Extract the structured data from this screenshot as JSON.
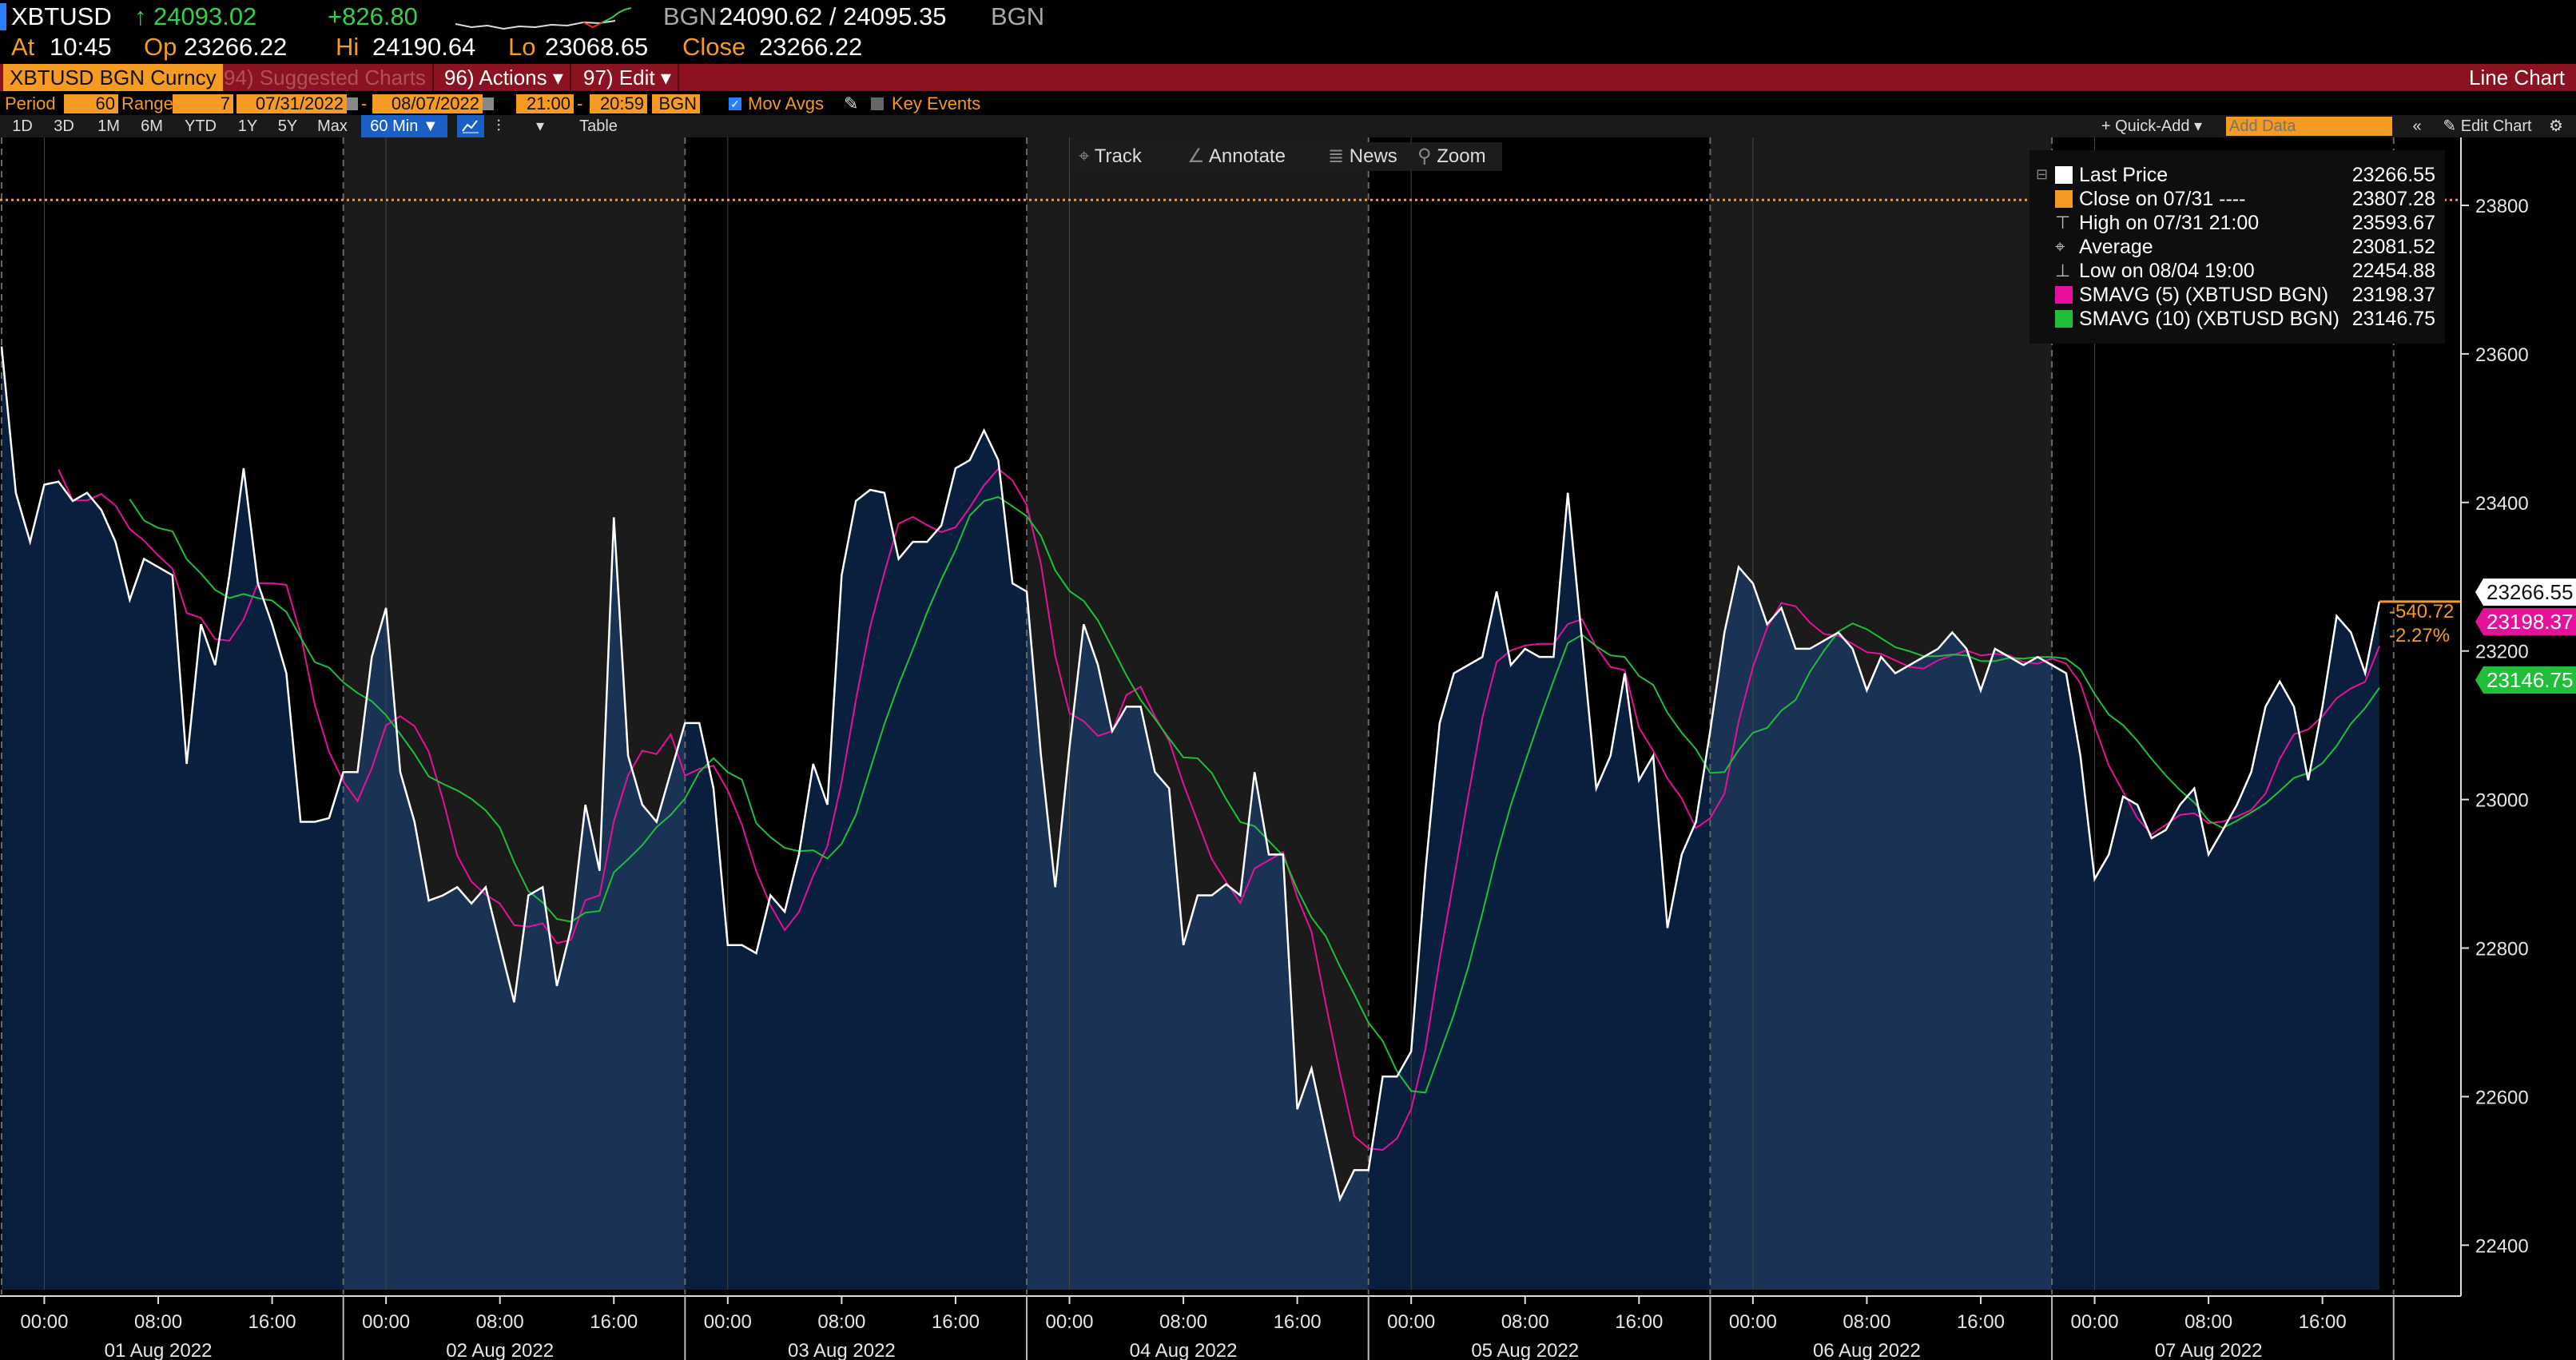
{
  "header": {
    "ticker": "XBTUSD",
    "last_arrow": "↑",
    "last": "24093.02",
    "change": "+826.80",
    "source_label": "BGN",
    "bid_ask": "24090.62 / 24095.35",
    "source_label_2": "BGN",
    "at_label": "At",
    "at": "10:45",
    "open_label": "Op",
    "open": "23266.22",
    "high_label": "Hi",
    "high": "24190.64",
    "low_label": "Lo",
    "low": "23068.65",
    "close_label": "Close",
    "close": "23266.22"
  },
  "menubar": {
    "security": "XBTUSD BGN Curncy",
    "suggested": "94) Suggested Charts",
    "actions": "96) Actions ▾",
    "edit": "97) Edit ▾",
    "chart_type": "Line Chart"
  },
  "options": {
    "period_label": "Period",
    "period": "60",
    "range_label": "Range",
    "range": "7",
    "start_date": "07/31/2022",
    "end_date": "08/07/2022",
    "start_time": "21:00",
    "end_time": "20:59",
    "source": "BGN",
    "mov_avgs_label": "Mov Avgs",
    "mov_avgs_checked": true,
    "key_events_label": "Key Events",
    "key_events_checked": false,
    "dash": "-"
  },
  "toolbar": {
    "ranges": [
      "1D",
      "3D",
      "1M",
      "6M",
      "YTD",
      "1Y",
      "5Y",
      "Max"
    ],
    "interval": "60 Min ▼",
    "table": "Table",
    "quick_add": "+ Quick-Add ▾",
    "add_data_placeholder": "Add Data",
    "collapse": "«",
    "edit_chart": "✎ Edit Chart",
    "gear": "⚙"
  },
  "chart_controls": {
    "track": "Track",
    "annotate": "Annotate",
    "news": "News",
    "zoom": "Zoom"
  },
  "legend": [
    {
      "name": "Last Price",
      "value": "23266.55",
      "color": "#ffffff"
    },
    {
      "name": "Close on 07/31 ----",
      "value": "23807.28",
      "color": "#f59a23"
    },
    {
      "name": "High on 07/31 21:00",
      "value": "23593.67",
      "icon": "high-marker"
    },
    {
      "name": "Average",
      "value": "23081.52",
      "icon": "average-marker"
    },
    {
      "name": "Low on 08/04 19:00",
      "value": "22454.88",
      "icon": "low-marker"
    },
    {
      "name": "SMAVG (5) (XBTUSD BGN)",
      "value": "23198.37",
      "color": "#e6119a"
    },
    {
      "name": "SMAVG (10) (XBTUSD BGN)",
      "value": "23146.75",
      "color": "#1fbf3a"
    }
  ],
  "annotation": {
    "change": "-540.72",
    "change_pct": "-2.27%"
  },
  "colors": {
    "price": "#ffffff",
    "area": "#0a1f3d",
    "area_alt": "#1a3253",
    "sma5": "#e6119a",
    "sma10": "#1fbf3a",
    "close_line": "#f59a23",
    "shade": "#1b1b1b"
  },
  "chart_data": {
    "type": "line",
    "x_start": "07/31/2022 21:00",
    "interval_minutes": 60,
    "ylim": [
      22330,
      23900
    ],
    "y_ticks": [
      23800,
      23600,
      23400,
      23200,
      23000,
      22800,
      22600,
      22400
    ],
    "reference_line": 23807.28,
    "right_axis_tags": [
      {
        "value": "23266.55",
        "color": "#ffffff",
        "text_color": "#111111"
      },
      {
        "value": "23198.37",
        "color": "#e6119a",
        "text_color": "#ffffff"
      },
      {
        "value": "23146.75",
        "color": "#1fbf3a",
        "text_color": "#ffffff"
      }
    ],
    "days": [
      "01 Aug 2022",
      "02 Aug 2022",
      "03 Aug 2022",
      "04 Aug 2022",
      "05 Aug 2022",
      "06 Aug 2022",
      "07 Aug 2022"
    ],
    "hour_ticks": [
      "00:00",
      "08:00",
      "16:00"
    ],
    "series": [
      {
        "name": "Last Price",
        "values": [
          23610,
          23413,
          23347,
          23424,
          23428,
          23402,
          23413,
          23390,
          23347,
          23269,
          23324,
          23313,
          23302,
          23048,
          23236,
          23181,
          23302,
          23446,
          23291,
          23236,
          23170,
          22970,
          22970,
          22975,
          23037,
          23037,
          23192,
          23258,
          23037,
          22970,
          22864,
          22871,
          22882,
          22860,
          22882,
          22804,
          22727,
          22871,
          22882,
          22749,
          22827,
          22993,
          22904,
          23380,
          23059,
          22993,
          22970,
          23037,
          23103,
          23103,
          23015,
          22804,
          22804,
          22793,
          22871,
          22849,
          22926,
          23048,
          22993,
          23302,
          23402,
          23417,
          23413,
          23324,
          23347,
          23347,
          23369,
          23446,
          23457,
          23497,
          23457,
          23291,
          23280,
          23059,
          22882,
          23070,
          23236,
          23181,
          23092,
          23125,
          23125,
          23037,
          23015,
          22804,
          22871,
          22871,
          22886,
          22871,
          23037,
          22926,
          22926,
          22583,
          22638,
          22550,
          22462,
          22501,
          22501,
          22627,
          22627,
          22661,
          22904,
          23103,
          23170,
          23181,
          23192,
          23280,
          23181,
          23203,
          23192,
          23192,
          23413,
          23214,
          23015,
          23059,
          23170,
          23026,
          23059,
          22827,
          22926,
          22970,
          23092,
          23225,
          23313,
          23291,
          23236,
          23258,
          23203,
          23203,
          23214,
          23225,
          23203,
          23147,
          23192,
          23170,
          23181,
          23192,
          23203,
          23225,
          23203,
          23147,
          23203,
          23192,
          23181,
          23192,
          23181,
          23170,
          23059,
          22893,
          22926,
          23004,
          22993,
          22948,
          22959,
          22993,
          23015,
          22926,
          22959,
          22993,
          23037,
          23125,
          23159,
          23125,
          23026,
          23125,
          23247,
          23225,
          23170,
          23266.55
        ]
      },
      {
        "name": "SMAVG (5) (XBTUSD BGN)",
        "window": 5
      },
      {
        "name": "SMAVG (10) (XBTUSD BGN)",
        "window": 10
      }
    ]
  }
}
